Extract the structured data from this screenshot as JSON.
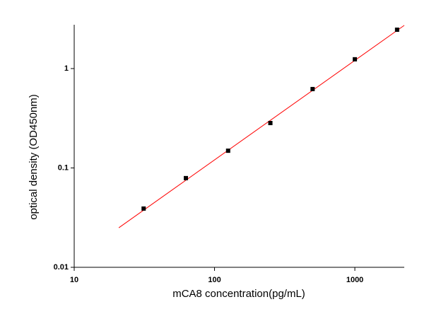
{
  "chart_data": {
    "type": "scatter",
    "x_label": "mCA8  concentration(pg/mL)",
    "y_label": "optical density (OD450nm)",
    "log_x": true,
    "log_y": true,
    "series": [
      {
        "x": [
          31.25,
          62.5,
          125,
          250,
          500,
          1000,
          2000
        ],
        "values": [
          0.039,
          0.079,
          0.149,
          0.283,
          0.622,
          1.24,
          2.46
        ],
        "color": "#000000"
      }
    ],
    "fit_line": {
      "x": [
        20.8,
        2250
      ],
      "values": [
        0.025,
        2.72
      ],
      "color": "#ff0000"
    },
    "xlim": [
      10,
      2250
    ],
    "ylim": [
      0.01,
      2.76
    ],
    "xticks": [
      10,
      100,
      1000
    ],
    "yticks": [
      0.01,
      0.1,
      1
    ]
  }
}
